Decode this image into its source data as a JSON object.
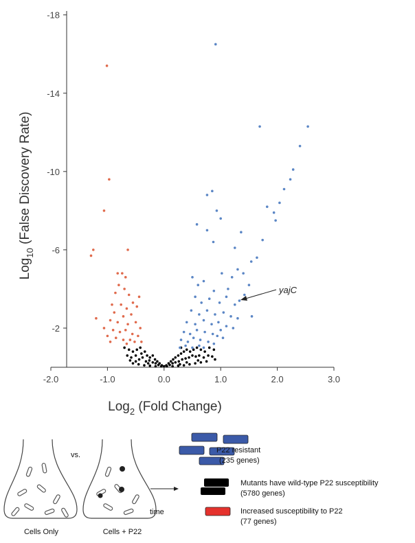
{
  "chart_data": {
    "type": "scatter",
    "x_label": {
      "base": "Log",
      "sub": "2",
      "rest": " (Fold Change)"
    },
    "y_label": {
      "base": "Log",
      "sub": "10",
      "rest": " (False Discovery Rate)"
    },
    "xlim": [
      -2,
      3
    ],
    "ylim": [
      0,
      -18.2
    ],
    "xticks": [
      {
        "value": -2,
        "label": "-2.0"
      },
      {
        "value": -1,
        "label": "-1.0"
      },
      {
        "value": 0,
        "label": "0.0"
      },
      {
        "value": 1,
        "label": "1.0"
      },
      {
        "value": 2,
        "label": "2.0"
      },
      {
        "value": 3,
        "label": "3.0"
      }
    ],
    "yticks": [
      -18,
      -14,
      -10,
      -6,
      -2
    ],
    "annotations": [
      {
        "text": "yajC"
      }
    ],
    "series": [
      {
        "color": "#000000",
        "x": [
          -0.7,
          -0.62,
          -0.55,
          -0.48,
          -0.4,
          -0.34,
          -0.3,
          -0.25,
          -0.2,
          -0.16,
          -0.12,
          -0.08,
          -0.04,
          0,
          0.04,
          0.08,
          0.12,
          0.16,
          0.2,
          0.25,
          0.3,
          0.35,
          0.4,
          0.46,
          0.52,
          0.58,
          0.65,
          0.72,
          0.8,
          0.88,
          -0.65,
          -0.58,
          -0.5,
          -0.44,
          -0.38,
          -0.32,
          -0.26,
          -0.2,
          -0.15,
          -0.1,
          -0.05,
          0.05,
          0.1,
          0.15,
          0.2,
          0.26,
          0.32,
          0.38,
          0.44,
          0.5,
          0.56,
          0.62,
          0.7,
          0.78,
          0.85,
          -0.55,
          -0.45,
          -0.35,
          -0.25,
          -0.15,
          0.15,
          0.25,
          0.35,
          0.45,
          0.55,
          0.65,
          0.75,
          -0.6,
          0.6,
          0.9,
          -0.42,
          0.3,
          -0.28,
          0.28,
          -0.5,
          0.4
        ],
        "values": [
          -1.0,
          -0.9,
          -0.8,
          -0.9,
          -0.7,
          -0.8,
          -0.6,
          -0.5,
          -0.6,
          -0.4,
          -0.3,
          -0.2,
          -0.1,
          -0.05,
          -0.1,
          -0.2,
          -0.3,
          -0.4,
          -0.5,
          -0.6,
          -0.7,
          -0.8,
          -0.9,
          -0.8,
          -0.9,
          -1.0,
          -0.9,
          -0.8,
          -1.0,
          -0.9,
          -0.6,
          -0.5,
          -0.6,
          -0.4,
          -0.5,
          -0.3,
          -0.35,
          -0.25,
          -0.2,
          -0.12,
          -0.05,
          -0.05,
          -0.12,
          -0.2,
          -0.25,
          -0.3,
          -0.4,
          -0.45,
          -0.5,
          -0.6,
          -0.55,
          -0.6,
          -0.5,
          -0.6,
          -0.55,
          -0.2,
          -0.15,
          -0.1,
          -0.08,
          -0.05,
          -0.05,
          -0.08,
          -0.1,
          -0.15,
          -0.2,
          -0.25,
          -0.3,
          -0.35,
          -0.35,
          -0.4,
          -1.0,
          -1.0,
          -0.2,
          -0.15,
          -0.3,
          -0.25
        ]
      },
      {
        "color": "#5b86c5",
        "x": [
          0.91,
          1.69,
          2.54,
          2.4,
          2.28,
          0.85,
          0.76,
          2.23,
          2.12,
          2.04,
          1.94,
          1.97,
          1.82,
          0.93,
          0.58,
          1.0,
          0.76,
          0.87,
          1.36,
          1.25,
          1.74,
          1.64,
          1.54,
          0.5,
          0.6,
          0.7,
          1.02,
          1.2,
          1.3,
          1.4,
          1.5,
          1.13,
          0.88,
          0.55,
          0.66,
          0.8,
          0.98,
          1.1,
          1.25,
          1.33,
          1.42,
          0.48,
          0.62,
          0.76,
          0.9,
          1.05,
          1.18,
          1.3,
          1.55,
          0.4,
          0.55,
          0.7,
          0.84,
          0.96,
          1.1,
          1.22,
          1.0,
          0.35,
          0.46,
          0.58,
          0.72,
          0.86,
          0.94,
          0.3,
          0.42,
          0.52,
          0.64,
          0.78,
          0.88,
          0.38,
          0.62,
          1.04,
          0.28,
          0.7,
          0.5
        ],
        "values": [
          -16.5,
          -12.3,
          -12.3,
          -11.3,
          -10.1,
          -9.0,
          -8.8,
          -9.6,
          -9.1,
          -8.4,
          -7.9,
          -7.5,
          -8.2,
          -8.0,
          -7.3,
          -7.6,
          -7.0,
          -6.4,
          -6.9,
          -6.1,
          -6.5,
          -5.6,
          -5.4,
          -4.6,
          -4.2,
          -4.4,
          -4.8,
          -4.6,
          -5.0,
          -4.8,
          -4.2,
          -4.0,
          -3.9,
          -3.6,
          -3.3,
          -3.5,
          -3.3,
          -3.6,
          -3.2,
          -3.4,
          -3.7,
          -2.9,
          -2.7,
          -2.9,
          -2.7,
          -2.8,
          -2.6,
          -2.5,
          -2.6,
          -2.3,
          -2.2,
          -2.4,
          -2.2,
          -2.3,
          -2.1,
          -2.0,
          -1.9,
          -1.8,
          -1.7,
          -1.9,
          -1.8,
          -1.7,
          -1.6,
          -1.4,
          -1.3,
          -1.5,
          -1.4,
          -1.3,
          -1.2,
          -1.1,
          -1.1,
          -1.5,
          -1.0,
          -1.0,
          -1.0
        ]
      },
      {
        "color": "#e06a4c",
        "x": [
          -1.01,
          -0.97,
          -1.06,
          -1.25,
          -1.29,
          -0.64,
          -0.82,
          -0.74,
          -0.68,
          -0.8,
          -0.7,
          -0.86,
          -0.62,
          -0.44,
          -0.55,
          -0.92,
          -0.76,
          -0.66,
          -0.48,
          -0.88,
          -0.72,
          -0.58,
          -1.2,
          -0.95,
          -0.82,
          -0.64,
          -0.5,
          -0.42,
          -1.06,
          -0.9,
          -0.78,
          -0.68,
          -0.56,
          -0.46,
          -1.0,
          -0.85,
          -0.72,
          -0.6,
          -0.52,
          -0.4,
          -0.95,
          -0.66
        ],
        "values": [
          -15.4,
          -9.6,
          -8.0,
          -6.0,
          -5.7,
          -6.0,
          -4.8,
          -4.8,
          -4.6,
          -4.2,
          -4.0,
          -3.8,
          -3.7,
          -3.6,
          -3.3,
          -3.2,
          -3.2,
          -3.0,
          -3.1,
          -2.8,
          -2.6,
          -2.7,
          -2.5,
          -2.4,
          -2.3,
          -2.2,
          -2.3,
          -2.0,
          -2.0,
          -1.9,
          -1.8,
          -1.9,
          -1.7,
          -1.6,
          -1.6,
          -1.5,
          -1.4,
          -1.4,
          -1.3,
          -1.3,
          -1.3,
          -1.2
        ]
      }
    ]
  },
  "diagram": {
    "vs": "vs.",
    "left_label": "Cells Only",
    "right_label": "Cells + P22",
    "arrow_label": "time",
    "legend": [
      {
        "label": "P22 resistant",
        "count": "(235 genes)"
      },
      {
        "label": "Mutants have wild-type P22 susceptibility",
        "count": "(5780 genes)"
      },
      {
        "label": "Increased susceptibility to P22",
        "count": "(77 genes)"
      }
    ]
  }
}
